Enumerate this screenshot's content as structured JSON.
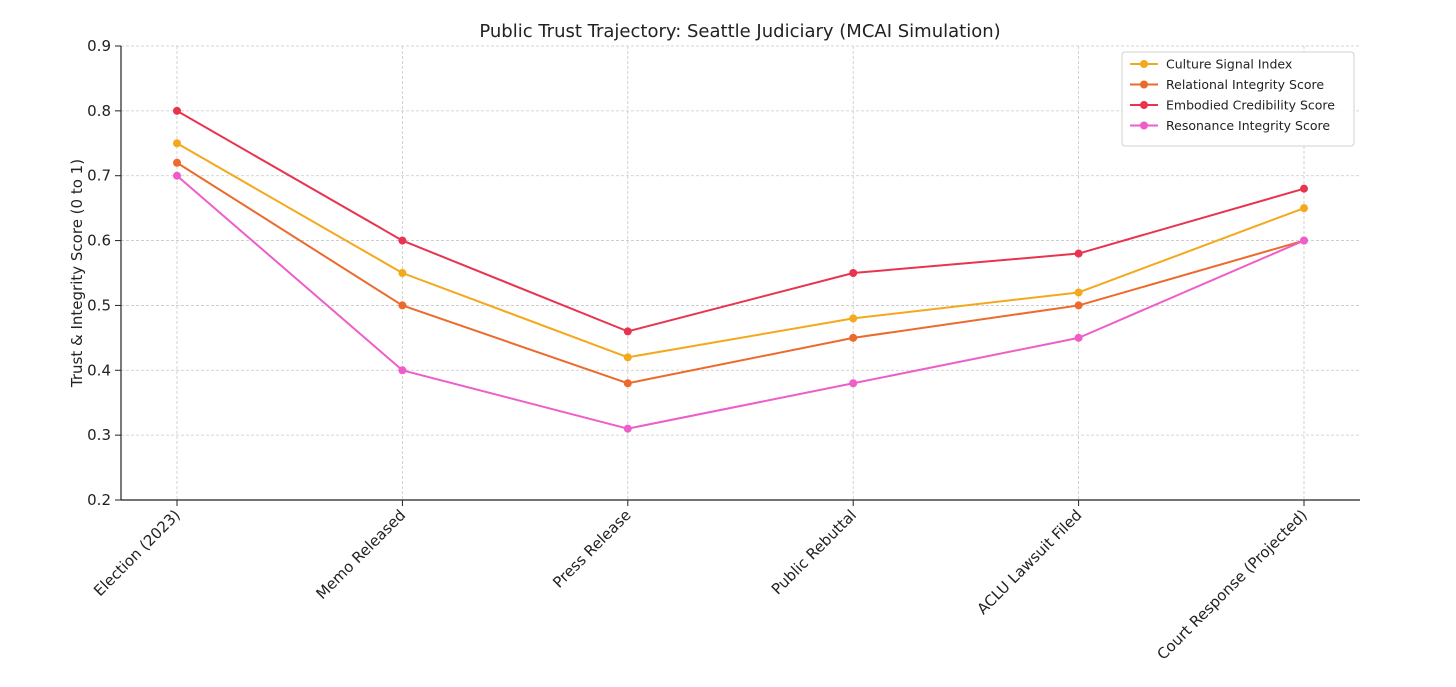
{
  "chart_data": {
    "type": "line",
    "title": "Public Trust Trajectory: Seattle Judiciary (MCAI Simulation)",
    "xlabel": "",
    "ylabel": "Trust & Integrity Score (0 to 1)",
    "ylim": [
      0.2,
      0.9
    ],
    "yticks": [
      0.2,
      0.3,
      0.4,
      0.5,
      0.6,
      0.7,
      0.8,
      0.9
    ],
    "ytick_labels": [
      "0.2",
      "0.3",
      "0.4",
      "0.5",
      "0.6",
      "0.7",
      "0.8",
      "0.9"
    ],
    "grid": true,
    "legend_position": "top-right",
    "categories": [
      "Election (2023)",
      "Memo Released",
      "Press Release",
      "Public Rebuttal",
      "ACLU Lawsuit Filed",
      "Court Response (Projected)"
    ],
    "series": [
      {
        "name": "Culture Signal Index",
        "color": "#f4a81c",
        "values": [
          0.75,
          0.55,
          0.42,
          0.48,
          0.52,
          0.65
        ]
      },
      {
        "name": "Relational Integrity Score",
        "color": "#ec6a2c",
        "values": [
          0.72,
          0.5,
          0.38,
          0.45,
          0.5,
          0.6
        ]
      },
      {
        "name": "Embodied Credibility Score",
        "color": "#e8344e",
        "values": [
          0.8,
          0.6,
          0.46,
          0.55,
          0.58,
          0.68
        ]
      },
      {
        "name": "Resonance Integrity Score",
        "color": "#ee5dc9",
        "values": [
          0.7,
          0.4,
          0.31,
          0.38,
          0.45,
          0.6
        ]
      }
    ]
  }
}
